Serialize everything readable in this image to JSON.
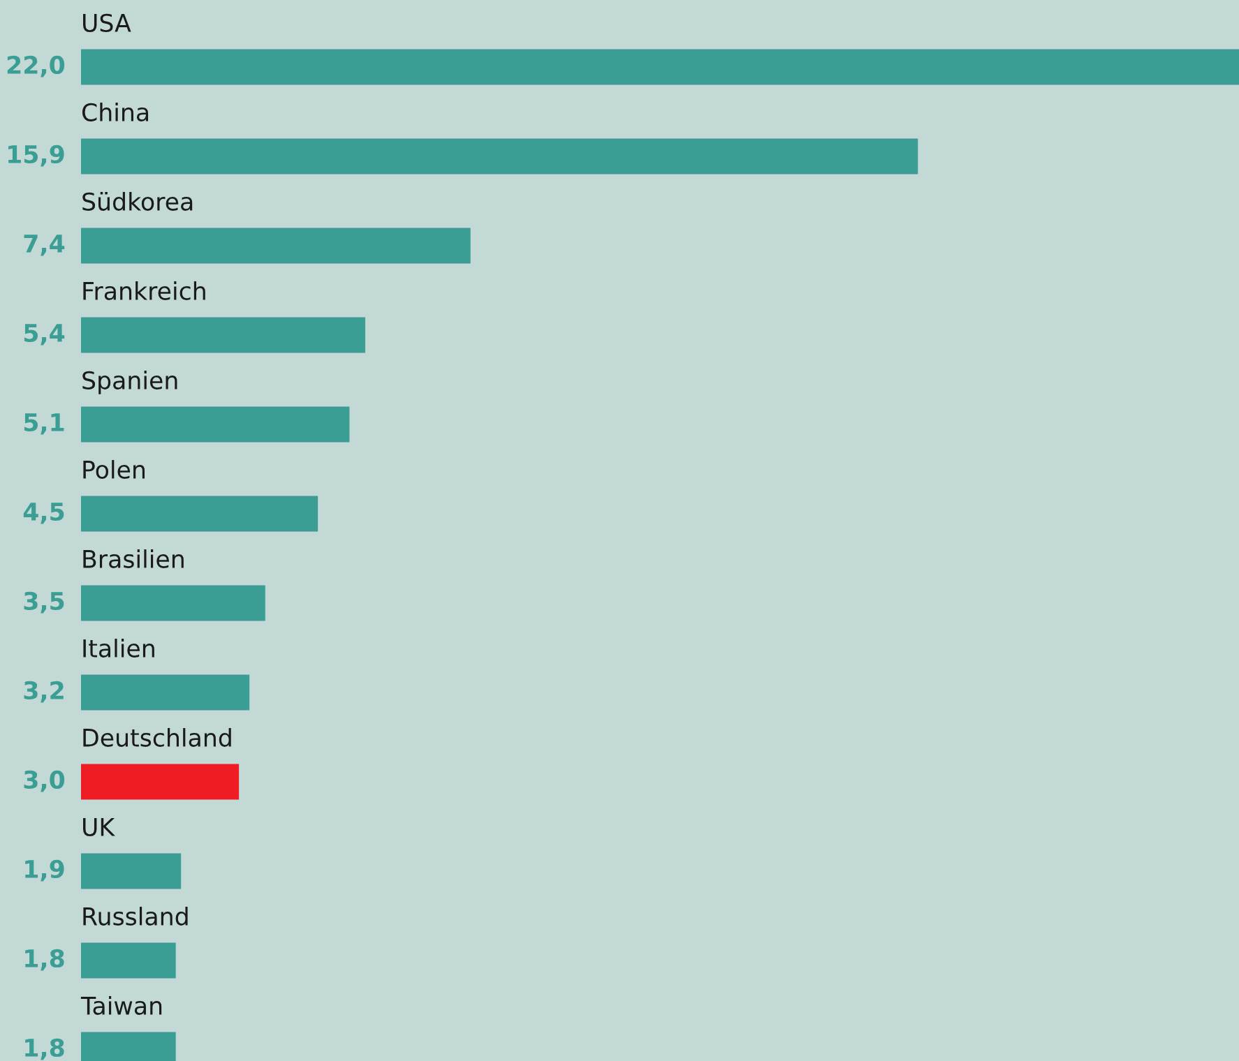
{
  "chart_data": {
    "type": "bar",
    "orientation": "horizontal",
    "categories": [
      "USA",
      "China",
      "Südkorea",
      "Frankreich",
      "Spanien",
      "Polen",
      "Brasilien",
      "Italien",
      "Deutschland",
      "UK",
      "Russland",
      "Taiwan"
    ],
    "values": [
      22.0,
      15.9,
      7.4,
      5.4,
      5.1,
      4.5,
      3.5,
      3.2,
      3.0,
      1.9,
      1.8,
      1.8
    ],
    "value_labels": [
      "22,0",
      "15,9",
      "7,4",
      "5,4",
      "5,1",
      "4,5",
      "3,5",
      "3,2",
      "3,0",
      "1,9",
      "1,8",
      "1,8"
    ],
    "colors": [
      "#3a9e94",
      "#3a9e94",
      "#3a9e94",
      "#3a9e94",
      "#3a9e94",
      "#3a9e94",
      "#3a9e94",
      "#3a9e94",
      "#ee1c25",
      "#3a9e94",
      "#3a9e94",
      "#3a9e94"
    ],
    "xlim": [
      0,
      22
    ]
  }
}
